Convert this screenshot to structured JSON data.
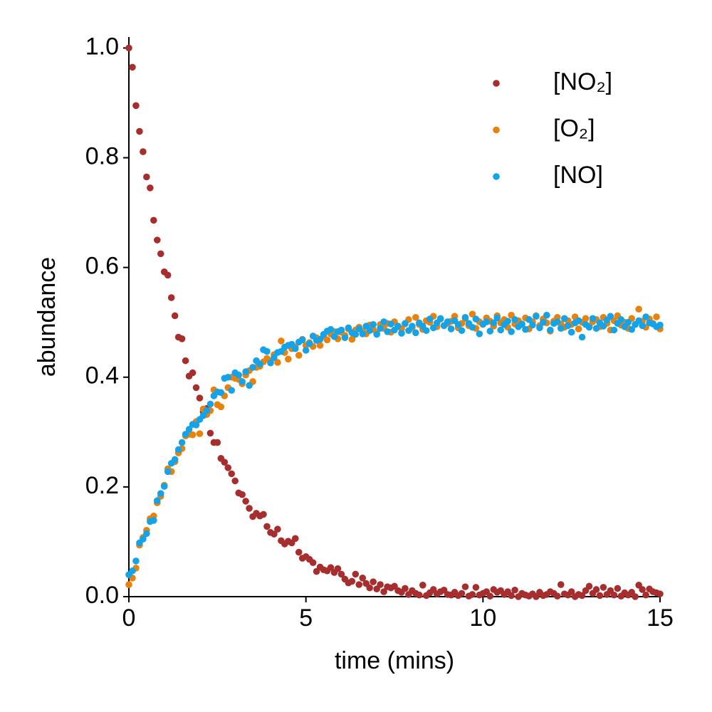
{
  "chart_data": {
    "type": "scatter",
    "x_label": "time (mins)",
    "y_label": "abundance",
    "xlim": [
      0,
      15
    ],
    "ylim": [
      0,
      1.02
    ],
    "xticks": [
      0,
      5,
      10,
      15
    ],
    "yticks": [
      {
        "value": 0,
        "label": "0.0"
      },
      0.2,
      0.4,
      0.6,
      0.8,
      {
        "value": 1,
        "label": "1.0"
      }
    ],
    "legend": "upper right",
    "x": [
      0,
      0.1,
      0.2,
      0.3,
      0.4,
      0.5,
      0.6,
      0.7,
      0.8,
      0.9,
      1,
      1.1,
      1.2,
      1.3,
      1.4,
      1.5,
      1.6,
      1.7,
      1.8,
      1.9,
      2,
      2.1,
      2.2,
      2.3,
      2.4,
      2.5,
      2.6,
      2.7,
      2.8,
      2.9,
      3,
      3.1,
      3.2,
      3.3,
      3.4,
      3.5,
      3.6,
      3.7,
      3.8,
      3.9,
      4,
      4.1,
      4.2,
      4.3,
      4.4,
      4.5,
      4.6,
      4.7,
      4.8,
      4.9,
      5,
      5.1,
      5.2,
      5.3,
      5.4,
      5.5,
      5.6,
      5.7,
      5.8,
      5.9,
      6,
      6.1,
      6.2,
      6.3,
      6.4,
      6.5,
      6.6,
      6.7,
      6.8,
      6.9,
      7,
      7.1,
      7.2,
      7.3,
      7.4,
      7.5,
      7.6,
      7.7,
      7.8,
      7.9,
      8,
      8.1,
      8.2,
      8.3,
      8.4,
      8.5,
      8.6,
      8.7,
      8.8,
      8.9,
      9,
      9.1,
      9.2,
      9.3,
      9.4,
      9.5,
      9.6,
      9.7,
      9.8,
      9.9,
      10,
      10.1,
      10.2,
      10.3,
      10.4,
      10.5,
      10.6,
      10.7,
      10.8,
      10.9,
      11,
      11.1,
      11.2,
      11.3,
      11.4,
      11.5,
      11.6,
      11.7,
      11.8,
      11.9,
      12,
      12.1,
      12.2,
      12.3,
      12.4,
      12.5,
      12.6,
      12.7,
      12.8,
      12.9,
      13,
      13.1,
      13.2,
      13.3,
      13.4,
      13.5,
      13.6,
      13.7,
      13.8,
      13.9,
      14,
      14.1,
      14.2,
      14.3,
      14.4,
      14.5,
      14.6,
      14.7,
      14.8,
      14.9,
      15
    ],
    "series": [
      {
        "name": "[NO₂]",
        "color": "#a62e2e",
        "values": [
          1.0,
          0.965,
          0.895,
          0.848,
          0.811,
          0.765,
          0.745,
          0.686,
          0.65,
          0.625,
          0.592,
          0.586,
          0.545,
          0.512,
          0.473,
          0.47,
          0.43,
          0.402,
          0.408,
          0.381,
          0.362,
          0.337,
          0.343,
          0.298,
          0.281,
          0.281,
          0.252,
          0.245,
          0.235,
          0.224,
          0.211,
          0.189,
          0.186,
          0.174,
          0.161,
          0.146,
          0.152,
          0.147,
          0.15,
          0.128,
          0.117,
          0.114,
          0.123,
          0.102,
          0.096,
          0.101,
          0.098,
          0.106,
          0.081,
          0.07,
          0.073,
          0.068,
          0.062,
          0.046,
          0.054,
          0.049,
          0.047,
          0.053,
          0.044,
          0.051,
          0.041,
          0.032,
          0.025,
          0.028,
          0.041,
          0.022,
          0.034,
          0.024,
          0.016,
          0.027,
          0.014,
          0.022,
          0.009,
          0.018,
          0.016,
          0.019,
          0.011,
          0.008,
          0.015,
          0.004,
          0.011,
          0.006,
          0.003,
          0.021,
          0.002,
          0.007,
          0.013,
          0.005,
          0.009,
          0.012,
          0.004,
          0.003,
          0.008,
          0.002,
          0.006,
          0.018,
          0.001,
          0.004,
          0.017,
          0.003,
          0.006,
          0.009,
          0.001,
          0.013,
          0.008,
          0.011,
          0.004,
          0.009,
          0.002,
          0.012,
          0.0,
          0.006,
          0.003,
          0.001,
          0.005,
          0.0,
          0.008,
          0.002,
          0.004,
          0.009,
          0.006,
          0.001,
          0.022,
          0.005,
          0.003,
          0.009,
          0.0,
          0.004,
          0.002,
          0.011,
          0.019,
          0.006,
          0.013,
          0.002,
          0.017,
          0.004,
          0.011,
          0.003,
          0.015,
          0.001,
          0.007,
          0.003,
          0.008,
          0.0,
          0.021,
          0.013,
          0.003,
          0.014,
          0.009,
          0.007,
          0.005
        ]
      },
      {
        "name": "[O₂]",
        "color": "#e8820c",
        "values": [
          0.022,
          0.034,
          0.052,
          0.094,
          0.108,
          0.121,
          0.142,
          0.147,
          0.171,
          0.183,
          0.203,
          0.233,
          0.228,
          0.246,
          0.262,
          0.27,
          0.293,
          0.296,
          0.295,
          0.319,
          0.297,
          0.342,
          0.332,
          0.339,
          0.377,
          0.35,
          0.346,
          0.366,
          0.381,
          0.4,
          0.398,
          0.396,
          0.388,
          0.404,
          0.412,
          0.392,
          0.418,
          0.42,
          0.428,
          0.434,
          0.43,
          0.441,
          0.427,
          0.466,
          0.445,
          0.433,
          0.452,
          0.455,
          0.44,
          0.469,
          0.458,
          0.463,
          0.456,
          0.472,
          0.458,
          0.475,
          0.468,
          0.479,
          0.483,
          0.47,
          0.482,
          0.476,
          0.488,
          0.469,
          0.486,
          0.491,
          0.484,
          0.479,
          0.495,
          0.487,
          0.481,
          0.496,
          0.489,
          0.498,
          0.482,
          0.501,
          0.493,
          0.488,
          0.497,
          0.505,
          0.49,
          0.509,
          0.496,
          0.487,
          0.503,
          0.5,
          0.511,
          0.492,
          0.506,
          0.494,
          0.498,
          0.502,
          0.511,
          0.49,
          0.498,
          0.507,
          0.494,
          0.515,
          0.489,
          0.501,
          0.496,
          0.508,
          0.502,
          0.493,
          0.512,
          0.499,
          0.505,
          0.491,
          0.513,
          0.497,
          0.503,
          0.496,
          0.508,
          0.488,
          0.501,
          0.512,
          0.494,
          0.506,
          0.499,
          0.484,
          0.502,
          0.509,
          0.497,
          0.491,
          0.503,
          0.496,
          0.51,
          0.488,
          0.5,
          0.507,
          0.493,
          0.501,
          0.505,
          0.492,
          0.509,
          0.498,
          0.486,
          0.503,
          0.512,
          0.495,
          0.5,
          0.489,
          0.507,
          0.496,
          0.524,
          0.502,
          0.491,
          0.506,
          0.498,
          0.51,
          0.488
        ]
      },
      {
        "name": "[NO]",
        "color": "#14a3e8",
        "values": [
          0.04,
          0.047,
          0.065,
          0.098,
          0.105,
          0.115,
          0.137,
          0.139,
          0.175,
          0.188,
          0.201,
          0.228,
          0.243,
          0.25,
          0.268,
          0.281,
          0.296,
          0.305,
          0.314,
          0.313,
          0.323,
          0.33,
          0.339,
          0.351,
          0.366,
          0.373,
          0.372,
          0.398,
          0.4,
          0.376,
          0.408,
          0.404,
          0.392,
          0.41,
          0.385,
          0.418,
          0.43,
          0.424,
          0.45,
          0.447,
          0.426,
          0.436,
          0.445,
          0.447,
          0.455,
          0.458,
          0.46,
          0.452,
          0.464,
          0.468,
          0.449,
          0.461,
          0.475,
          0.467,
          0.469,
          0.478,
          0.484,
          0.487,
          0.474,
          0.483,
          0.486,
          0.472,
          0.49,
          0.481,
          0.478,
          0.488,
          0.479,
          0.493,
          0.485,
          0.496,
          0.478,
          0.489,
          0.501,
          0.483,
          0.497,
          0.486,
          0.493,
          0.48,
          0.498,
          0.485,
          0.493,
          0.481,
          0.499,
          0.493,
          0.485,
          0.506,
          0.49,
          0.499,
          0.507,
          0.494,
          0.501,
          0.488,
          0.503,
          0.496,
          0.485,
          0.509,
          0.498,
          0.491,
          0.506,
          0.479,
          0.497,
          0.501,
          0.484,
          0.499,
          0.508,
          0.486,
          0.496,
          0.502,
          0.483,
          0.505,
          0.492,
          0.497,
          0.487,
          0.505,
          0.495,
          0.511,
          0.49,
          0.5,
          0.513,
          0.486,
          0.498,
          0.501,
          0.489,
          0.507,
          0.494,
          0.482,
          0.499,
          0.503,
          0.473,
          0.496,
          0.491,
          0.507,
          0.489,
          0.499,
          0.493,
          0.504,
          0.511,
          0.486,
          0.498,
          0.505,
          0.492,
          0.5,
          0.487,
          0.496,
          0.503,
          0.494,
          0.51,
          0.499,
          0.497,
          0.492,
          0.495
        ]
      }
    ]
  }
}
